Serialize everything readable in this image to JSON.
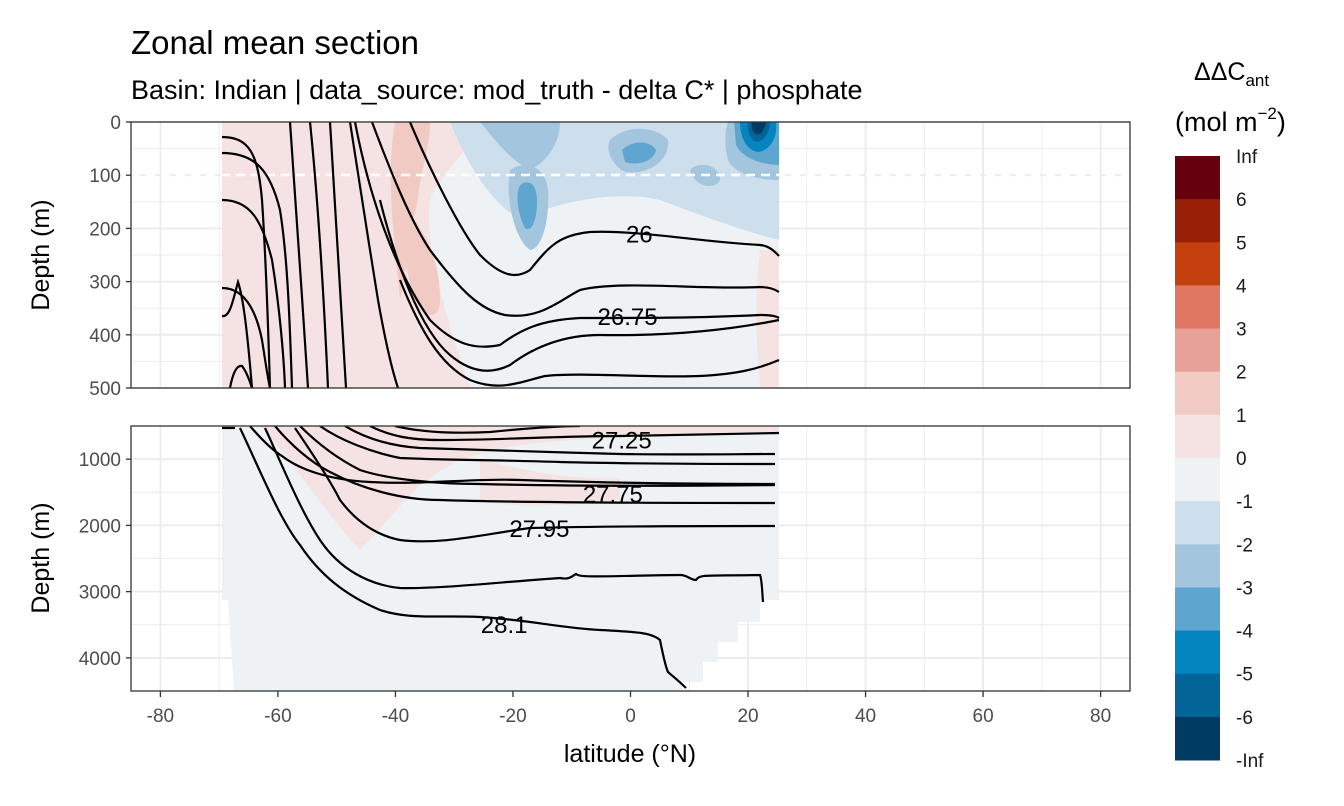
{
  "title": "Zonal mean section",
  "subtitle": "Basin: Indian | data_source: mod_truth - delta C* | phosphate",
  "chart_data": {
    "type": "heatmap",
    "title": "Zonal mean section",
    "subtitle": "Basin: Indian | data_source: mod_truth - delta C* | phosphate",
    "xlabel": "latitude (°N)",
    "ylabel": "Depth (m)",
    "x_range": [
      -85,
      85
    ],
    "x_ticks": [
      -80,
      -60,
      -40,
      -20,
      0,
      20,
      40,
      60,
      80
    ],
    "data_lat_range": [
      -70,
      25
    ],
    "grid": true,
    "reference_depth_line": 100,
    "panels": [
      {
        "name": "upper",
        "ylim": [
          500,
          0
        ],
        "y_ticks": [
          0,
          100,
          200,
          300,
          400,
          500
        ]
      },
      {
        "name": "lower",
        "ylim": [
          4500,
          500
        ],
        "y_ticks": [
          1000,
          2000,
          3000,
          4000
        ]
      }
    ],
    "legend": {
      "title_main": "ΔΔC",
      "title_sub": "ant",
      "unit_main": "(mol m",
      "unit_sup": "−2",
      "unit_close": ")",
      "position": "right",
      "labels": [
        "Inf",
        "6",
        "5",
        "4",
        "3",
        "2",
        "1",
        "0",
        "-1",
        "-2",
        "-3",
        "-4",
        "-5",
        "-6",
        "-Inf"
      ],
      "colors": [
        "#67000d",
        "#9a1f07",
        "#c4400f",
        "#df7762",
        "#e8a198",
        "#f2cac4",
        "#f5e3e3",
        "#eef2f5",
        "#cddeec",
        "#a3c6de",
        "#5ea6cf",
        "#0485c0",
        "#036498",
        "#003b63"
      ]
    },
    "contours": [
      {
        "label": "26",
        "lat": 1.5,
        "depth": 210
      },
      {
        "label": "26.75",
        "lat": -0.5,
        "depth": 365
      },
      {
        "label": "27.25",
        "lat": -1.5,
        "depth": 700
      },
      {
        "label": "27.75",
        "lat": -3.0,
        "depth": 1520
      },
      {
        "label": "27.95",
        "lat": -15.5,
        "depth": 2040
      },
      {
        "label": "28.1",
        "lat": -21.5,
        "depth": 3490
      }
    ]
  }
}
